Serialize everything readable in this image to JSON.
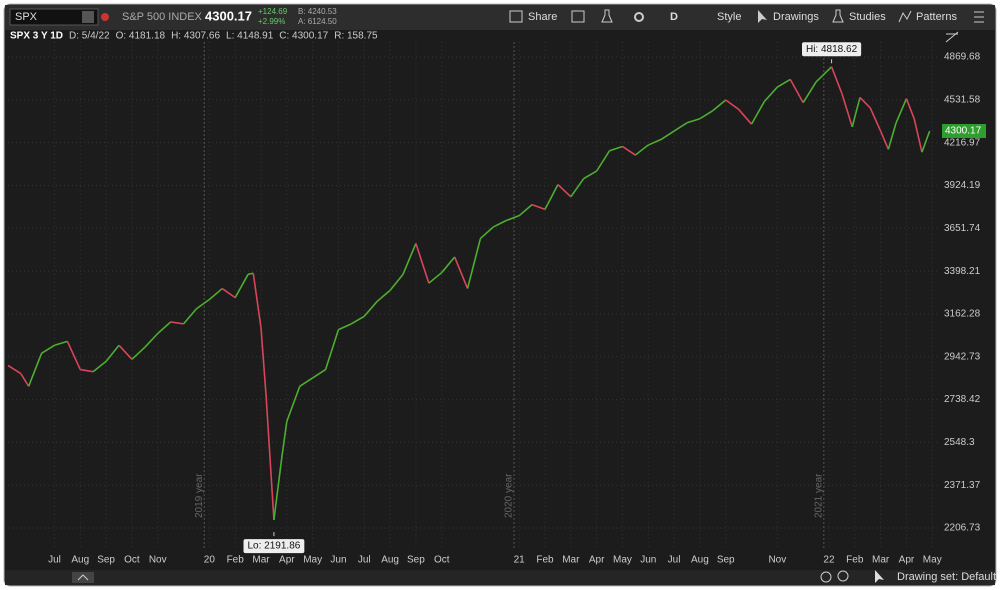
{
  "header": {
    "symbol": "SPX",
    "description": "S&P 500 INDEX",
    "last": "4300.17",
    "change": "+124.69",
    "change_pct": "+2.99%",
    "bid": "B: 4240.53",
    "ask": "A: 6124.50",
    "buttons": [
      "Share",
      "D",
      "Style",
      "Drawings",
      "Studies",
      "Patterns"
    ]
  },
  "info_bar": [
    "SPX 3 Y 1D",
    "D: 5/4/22",
    "O: 4181.18",
    "H: 4307.66",
    "L: 4148.91",
    "C: 4300.17",
    "R: 158.75"
  ],
  "footer": {
    "drawing_set": "Drawing set: Default"
  },
  "chart_data": {
    "type": "line",
    "log_scale": true,
    "grid": true,
    "up_color": "#4caf2f",
    "down_color": "#d9455a",
    "x": [
      -1.8,
      -1.3,
      -1,
      -0.5,
      0,
      0.5,
      1,
      1.5,
      2,
      2.5,
      3,
      3.5,
      4,
      4.5,
      5,
      5.5,
      6,
      6.5,
      7,
      7.5,
      7.7,
      8,
      8.2,
      8.5,
      8.8,
      9,
      9.5,
      10,
      10.5,
      11,
      11.5,
      12,
      12.5,
      13,
      13.5,
      14,
      14.5,
      15,
      15.5,
      16,
      16.5,
      17,
      17.5,
      18,
      18.5,
      19,
      19.5,
      20,
      20.5,
      21,
      21.5,
      22,
      22.5,
      23,
      23.5,
      24,
      24.5,
      25,
      25.5,
      26,
      26.5,
      27,
      27.5,
      28,
      28.5,
      29,
      29.5,
      30.1,
      30.5,
      30.9,
      31.2,
      31.6,
      32,
      32.3,
      32.6,
      33,
      33.3,
      33.6,
      33.9
    ],
    "values": [
      2900,
      2860,
      2800,
      2960,
      3000,
      3020,
      2880,
      2870,
      2920,
      3000,
      2930,
      2990,
      3060,
      3120,
      3110,
      3190,
      3240,
      3300,
      3250,
      3380,
      3386,
      3090,
      2750,
      2237,
      2480,
      2640,
      2800,
      2840,
      2880,
      3080,
      3110,
      3150,
      3230,
      3290,
      3380,
      3560,
      3330,
      3390,
      3480,
      3300,
      3590,
      3660,
      3700,
      3730,
      3800,
      3770,
      3930,
      3850,
      3970,
      4020,
      4160,
      4190,
      4130,
      4200,
      4240,
      4300,
      4360,
      4390,
      4450,
      4530,
      4460,
      4350,
      4520,
      4630,
      4690,
      4510,
      4670,
      4790,
      4580,
      4330,
      4550,
      4470,
      4300,
      4170,
      4360,
      4540,
      4390,
      4150,
      4300.17
    ],
    "last_price": 4300.17,
    "xlim": [
      -1.8,
      34.3
    ],
    "xticks": [
      {
        "value": 0,
        "label": "Jul"
      },
      {
        "value": 1,
        "label": "Aug"
      },
      {
        "value": 2,
        "label": "Sep"
      },
      {
        "value": 3,
        "label": "Oct"
      },
      {
        "value": 4,
        "label": "Nov"
      },
      {
        "value": 6,
        "label": "20"
      },
      {
        "value": 7,
        "label": "Feb"
      },
      {
        "value": 8,
        "label": "Mar"
      },
      {
        "value": 9,
        "label": "Apr"
      },
      {
        "value": 10,
        "label": "May"
      },
      {
        "value": 11,
        "label": "Jun"
      },
      {
        "value": 12,
        "label": "Jul"
      },
      {
        "value": 13,
        "label": "Aug"
      },
      {
        "value": 14,
        "label": "Sep"
      },
      {
        "value": 15,
        "label": "Oct"
      },
      {
        "value": 18,
        "label": "21"
      },
      {
        "value": 19,
        "label": "Feb"
      },
      {
        "value": 20,
        "label": "Mar"
      },
      {
        "value": 21,
        "label": "Apr"
      },
      {
        "value": 22,
        "label": "May"
      },
      {
        "value": 23,
        "label": "Jun"
      },
      {
        "value": 24,
        "label": "Jul"
      },
      {
        "value": 25,
        "label": "Aug"
      },
      {
        "value": 26,
        "label": "Sep"
      },
      {
        "value": 28,
        "label": "Nov"
      },
      {
        "value": 30,
        "label": "22"
      },
      {
        "value": 31,
        "label": "Feb"
      },
      {
        "value": 32,
        "label": "Mar"
      },
      {
        "value": 33,
        "label": "Apr"
      },
      {
        "value": 34,
        "label": "May"
      }
    ],
    "ylim": [
      2134,
      4994
    ],
    "yticks": [
      4869.68,
      4531.58,
      4216.97,
      3924.19,
      3651.74,
      3398.21,
      3162.28,
      2942.73,
      2738.42,
      2548.3,
      2371.37,
      2206.73
    ],
    "year_marks": [
      {
        "label": "2019 year",
        "x": 5.8
      },
      {
        "label": "2020 year",
        "x": 17.8
      },
      {
        "label": "2021 year",
        "x": 29.8
      }
    ],
    "annotations": [
      {
        "label": "Hi: 4818.62",
        "value": 4818.62,
        "x": 30.1
      },
      {
        "label": "Lo: 2191.86",
        "value": 2191.86,
        "x": 8.5
      }
    ]
  }
}
